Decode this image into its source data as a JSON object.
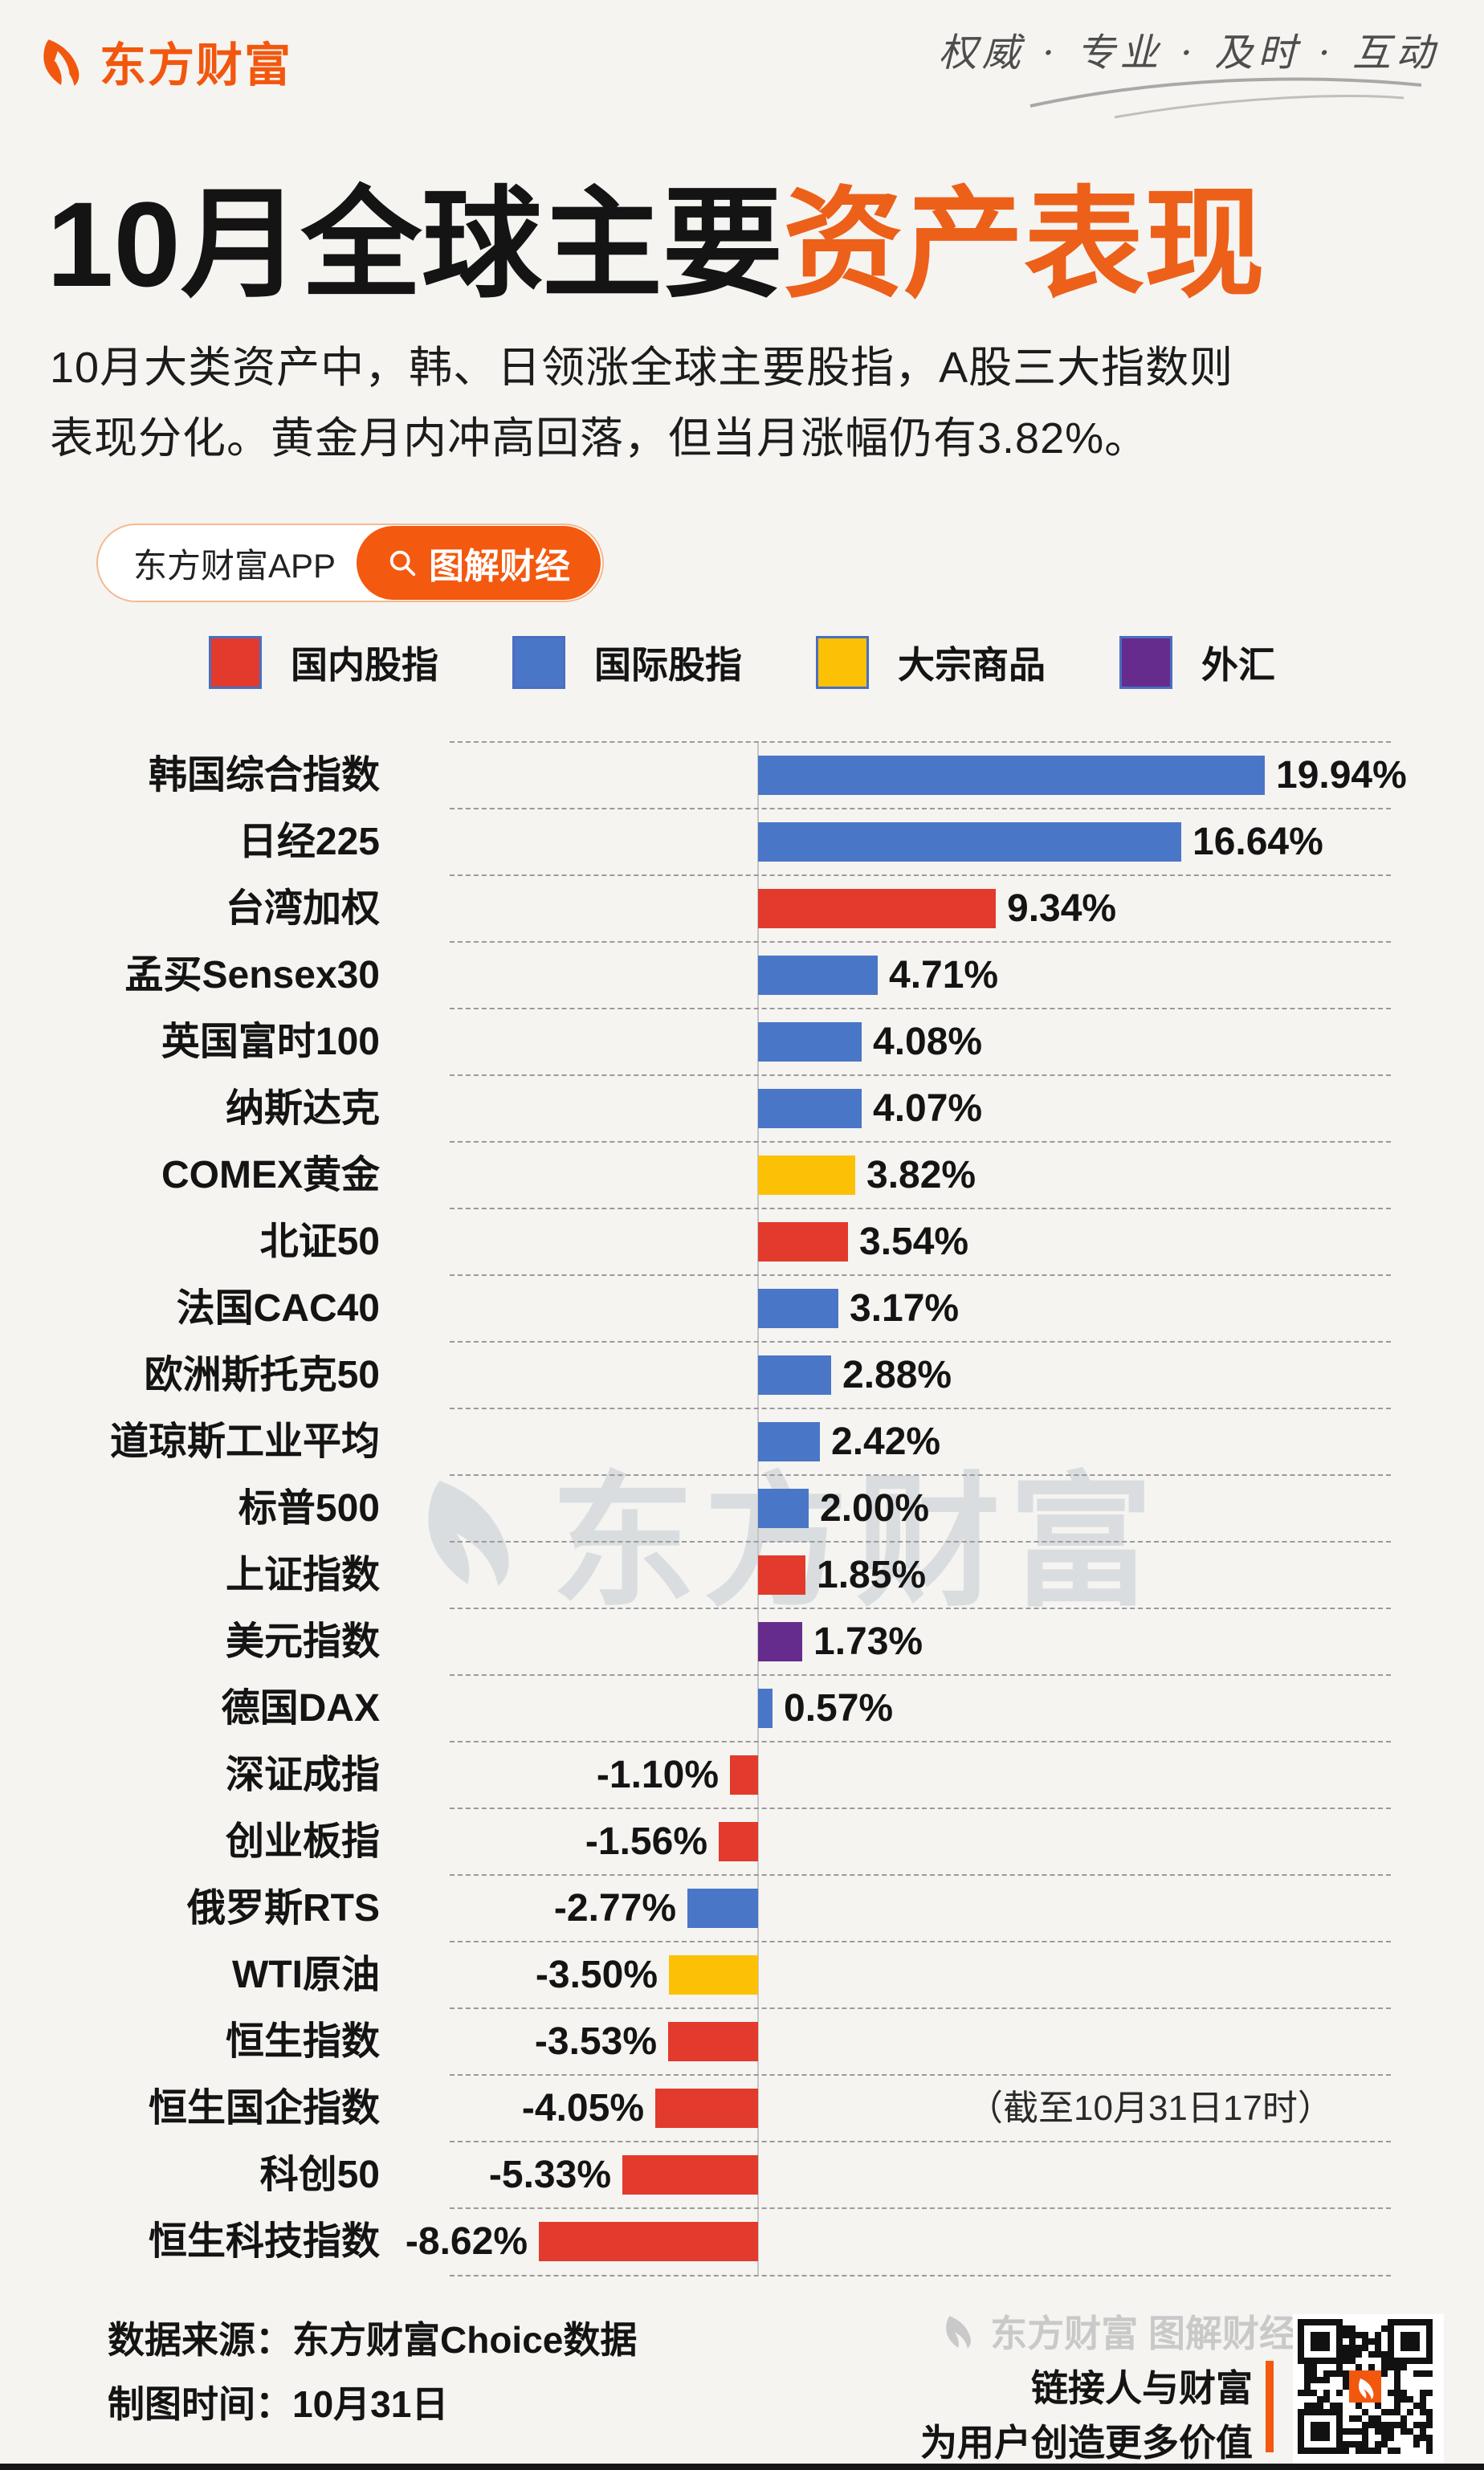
{
  "header": {
    "logo_text": "东方财富",
    "slogan": "权威 · 专业 · 及时 · 互动"
  },
  "title": {
    "part1": "10月全球主要",
    "part2": "资产表现"
  },
  "intro": {
    "line1": "10月大类资产中，韩、日领涨全球主要股指，A股三大指数则",
    "line2": "表现分化。黄金月内冲高回落，但当月涨幅仍有3.82%。"
  },
  "app_badge": {
    "app_label": "东方财富APP",
    "button_label": "图解财经",
    "search_icon": "magnifier-icon"
  },
  "colors": {
    "brand_orange": "#f2570e",
    "title_accent": "#ec6019"
  },
  "chart_data": {
    "type": "bar",
    "orientation": "horizontal",
    "unit": "%",
    "xlim": [
      -8.62,
      19.94
    ],
    "grid": "dashed-row-separators",
    "legend_position": "top",
    "legend": [
      {
        "key": "domestic",
        "label": "国内股指",
        "color": "#e23a2c"
      },
      {
        "key": "international",
        "label": "国际股指",
        "color": "#4a76c8"
      },
      {
        "key": "commodity",
        "label": "大宗商品",
        "color": "#fcc104"
      },
      {
        "key": "forex",
        "label": "外汇",
        "color": "#652c8d"
      }
    ],
    "colors": {
      "domestic": "#e23a2c",
      "international": "#4a76c8",
      "commodity": "#fcc104",
      "forex": "#652c8d"
    },
    "rows": [
      {
        "label": "韩国综合指数",
        "value": 19.94,
        "display": "19.94%",
        "category": "international"
      },
      {
        "label": "日经225",
        "value": 16.64,
        "display": "16.64%",
        "category": "international"
      },
      {
        "label": "台湾加权",
        "value": 9.34,
        "display": "9.34%",
        "category": "domestic"
      },
      {
        "label": "孟买Sensex30",
        "value": 4.71,
        "display": "4.71%",
        "category": "international"
      },
      {
        "label": "英国富时100",
        "value": 4.08,
        "display": "4.08%",
        "category": "international"
      },
      {
        "label": "纳斯达克",
        "value": 4.07,
        "display": "4.07%",
        "category": "international"
      },
      {
        "label": "COMEX黄金",
        "value": 3.82,
        "display": "3.82%",
        "category": "commodity"
      },
      {
        "label": "北证50",
        "value": 3.54,
        "display": "3.54%",
        "category": "domestic"
      },
      {
        "label": "法国CAC40",
        "value": 3.17,
        "display": "3.17%",
        "category": "international"
      },
      {
        "label": "欧洲斯托克50",
        "value": 2.88,
        "display": "2.88%",
        "category": "international"
      },
      {
        "label": "道琼斯工业平均",
        "value": 2.42,
        "display": "2.42%",
        "category": "international"
      },
      {
        "label": "标普500",
        "value": 2.0,
        "display": "2.00%",
        "category": "international"
      },
      {
        "label": "上证指数",
        "value": 1.85,
        "display": "1.85%",
        "category": "domestic"
      },
      {
        "label": "美元指数",
        "value": 1.73,
        "display": "1.73%",
        "category": "forex"
      },
      {
        "label": "德国DAX",
        "value": 0.57,
        "display": "0.57%",
        "category": "international"
      },
      {
        "label": "深证成指",
        "value": -1.1,
        "display": "-1.10%",
        "category": "domestic"
      },
      {
        "label": "创业板指",
        "value": -1.56,
        "display": "-1.56%",
        "category": "domestic"
      },
      {
        "label": "俄罗斯RTS",
        "value": -2.77,
        "display": "-2.77%",
        "category": "international"
      },
      {
        "label": "WTI原油",
        "value": -3.5,
        "display": "-3.50%",
        "category": "commodity"
      },
      {
        "label": "恒生指数",
        "value": -3.53,
        "display": "-3.53%",
        "category": "domestic"
      },
      {
        "label": "恒生国企指数",
        "value": -4.05,
        "display": "-4.05%",
        "category": "domestic"
      },
      {
        "label": "科创50",
        "value": -5.33,
        "display": "-5.33%",
        "category": "domestic"
      },
      {
        "label": "恒生科技指数",
        "value": -8.62,
        "display": "-8.62%",
        "category": "domestic"
      }
    ],
    "annotation": {
      "text": "（截至10月31日17时）",
      "row_index": 20
    }
  },
  "watermark_center": "东方财富",
  "footer": {
    "source_line": "数据来源：东方财富Choice数据",
    "date_line": "制图时间：10月31日",
    "watermark": "东方财富 图解财经",
    "slogan_line1": "链接人与财富",
    "slogan_line2": "为用户创造更多价值",
    "qr_icon": "qr-code"
  }
}
